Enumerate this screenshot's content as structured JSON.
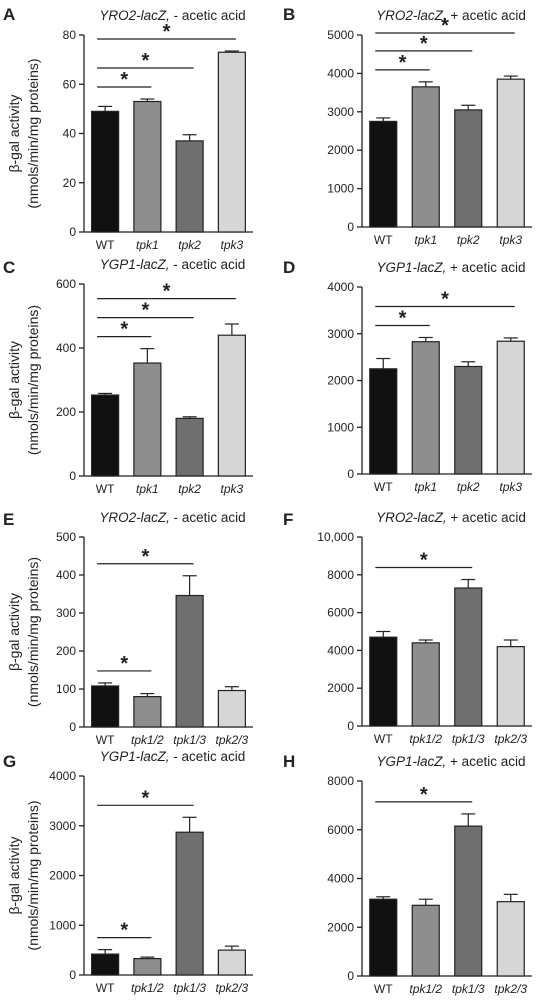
{
  "colors": {
    "WT": "#111111",
    "tpk1": "#8e8e8e",
    "tpk2": "#6f6f6f",
    "tpk3": "#d6d6d6",
    "tpk1/2": "#8e8e8e",
    "tpk1/3": "#6f6f6f",
    "tpk2/3": "#d6d6d6",
    "axis": "#222222"
  },
  "ylabel_line1": "β-gal activity",
  "ylabel_line2": "(nmols/min/mg proteins)",
  "chart_data": [
    {
      "panel": "A",
      "type": "bar",
      "title_gene": "YRO2-lacZ,",
      "title_rest": " - acetic acid",
      "ylabel": "β-gal activity (nmols/min/mg proteins)",
      "categories": [
        "WT",
        "tpk1",
        "tpk2",
        "tpk3"
      ],
      "values": [
        49,
        53,
        37,
        73
      ],
      "errors": [
        2,
        1,
        2.5,
        0.5
      ],
      "ylim": [
        0,
        80
      ],
      "yticks": [
        "0",
        "20",
        "40",
        "60",
        "80"
      ],
      "significance": [
        [
          0,
          1
        ],
        [
          0,
          2
        ],
        [
          0,
          3
        ]
      ],
      "sig_label": "*"
    },
    {
      "panel": "B",
      "type": "bar",
      "title_gene": "YRO2-lacZ,",
      "title_rest": " + acetic acid",
      "ylabel": "",
      "categories": [
        "WT",
        "tpk1",
        "tpk2",
        "tpk3"
      ],
      "values": [
        2750,
        3650,
        3050,
        3850
      ],
      "errors": [
        90,
        130,
        120,
        80
      ],
      "ylim": [
        0,
        5000
      ],
      "yticks": [
        "0",
        "1000",
        "2000",
        "3000",
        "4000",
        "5000"
      ],
      "significance": [
        [
          0,
          1
        ],
        [
          0,
          2
        ],
        [
          0,
          3
        ]
      ],
      "sig_label": "*"
    },
    {
      "panel": "C",
      "type": "bar",
      "title_gene": "YGP1-lacZ,",
      "title_rest": " - acetic acid",
      "ylabel": "β-gal activity (nmols/min/mg proteins)",
      "categories": [
        "WT",
        "tpk1",
        "tpk2",
        "tpk3"
      ],
      "values": [
        253,
        353,
        180,
        440
      ],
      "errors": [
        5,
        45,
        5,
        35
      ],
      "ylim": [
        0,
        600
      ],
      "yticks": [
        "0",
        "200",
        "400",
        "600"
      ],
      "significance": [
        [
          0,
          1
        ],
        [
          0,
          2
        ],
        [
          0,
          3
        ]
      ],
      "sig_label": "*"
    },
    {
      "panel": "D",
      "type": "bar",
      "title_gene": "YGP1-lacZ,",
      "title_rest": " + acetic acid",
      "ylabel": "",
      "categories": [
        "WT",
        "tpk1",
        "tpk2",
        "tpk3"
      ],
      "values": [
        2250,
        2830,
        2300,
        2840
      ],
      "errors": [
        220,
        90,
        100,
        70
      ],
      "ylim": [
        0,
        4000
      ],
      "yticks": [
        "0",
        "1000",
        "2000",
        "3000",
        "4000"
      ],
      "significance": [
        [
          0,
          1
        ],
        [
          0,
          3
        ]
      ],
      "sig_label": "*"
    },
    {
      "panel": "E",
      "type": "bar",
      "title_gene": "YRO2-lacZ,",
      "title_rest": " - acetic acid",
      "ylabel": "β-gal activity (nmols/min/mg proteins)",
      "categories": [
        "WT",
        "tpk1/2",
        "tpk1/3",
        "tpk2/3"
      ],
      "values": [
        108,
        80,
        346,
        96
      ],
      "errors": [
        8,
        8,
        52,
        10
      ],
      "ylim": [
        0,
        500
      ],
      "yticks": [
        "0",
        "100",
        "200",
        "300",
        "400",
        "500"
      ],
      "significance": [
        [
          0,
          1
        ],
        [
          0,
          2
        ]
      ],
      "sig_label": "*"
    },
    {
      "panel": "F",
      "type": "bar",
      "title_gene": "YRO2-lacZ,",
      "title_rest": " + acetic acid",
      "ylabel": "",
      "categories": [
        "WT",
        "tpk1/2",
        "tpk1/3",
        "tpk2/3"
      ],
      "values": [
        4700,
        4400,
        7300,
        4200
      ],
      "errors": [
        300,
        150,
        450,
        350
      ],
      "ylim": [
        0,
        10000
      ],
      "yticks": [
        "0",
        "2000",
        "4000",
        "6000",
        "8000",
        "10,000"
      ],
      "significance": [
        [
          0,
          2
        ]
      ],
      "sig_label": "*"
    },
    {
      "panel": "G",
      "type": "bar",
      "title_gene": "YGP1-lacZ,",
      "title_rest": " - acetic acid",
      "ylabel": "β-gal activity (nmols/min/mg proteins)",
      "categories": [
        "WT",
        "tpk1/2",
        "tpk1/3",
        "tpk2/3"
      ],
      "values": [
        420,
        330,
        2870,
        500
      ],
      "errors": [
        90,
        30,
        300,
        80
      ],
      "ylim": [
        0,
        4000
      ],
      "yticks": [
        "0",
        "1000",
        "2000",
        "3000",
        "4000"
      ],
      "significance": [
        [
          0,
          1
        ],
        [
          0,
          2
        ]
      ],
      "sig_label": "*"
    },
    {
      "panel": "H",
      "type": "bar",
      "title_gene": "YGP1-lacZ,",
      "title_rest": " + acetic acid",
      "ylabel": "",
      "categories": [
        "WT",
        "tpk1/2",
        "tpk1/3",
        "tpk2/3"
      ],
      "values": [
        3150,
        2900,
        6150,
        3050
      ],
      "errors": [
        100,
        250,
        500,
        300
      ],
      "ylim": [
        0,
        8000
      ],
      "yticks": [
        "0",
        "2000",
        "4000",
        "6000",
        "8000"
      ],
      "significance": [
        [
          0,
          2
        ]
      ],
      "sig_label": "*"
    }
  ]
}
